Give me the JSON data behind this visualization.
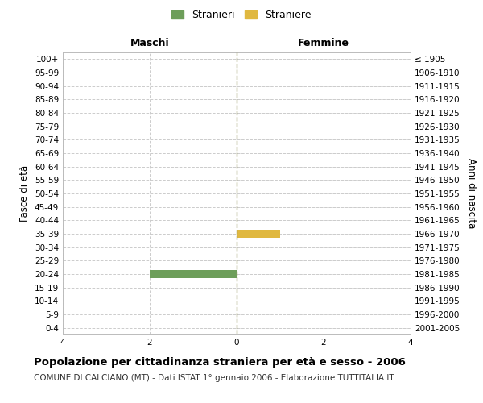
{
  "age_groups": [
    "100+",
    "95-99",
    "90-94",
    "85-89",
    "80-84",
    "75-79",
    "70-74",
    "65-69",
    "60-64",
    "55-59",
    "50-54",
    "45-49",
    "40-44",
    "35-39",
    "30-34",
    "25-29",
    "20-24",
    "15-19",
    "10-14",
    "5-9",
    "0-4"
  ],
  "birth_years": [
    "≤ 1905",
    "1906-1910",
    "1911-1915",
    "1916-1920",
    "1921-1925",
    "1926-1930",
    "1931-1935",
    "1936-1940",
    "1941-1945",
    "1946-1950",
    "1951-1955",
    "1956-1960",
    "1961-1965",
    "1966-1970",
    "1971-1975",
    "1976-1980",
    "1981-1985",
    "1986-1990",
    "1991-1995",
    "1996-2000",
    "2001-2005"
  ],
  "maschi_values": [
    0,
    0,
    0,
    0,
    0,
    0,
    0,
    0,
    0,
    0,
    0,
    0,
    0,
    0,
    0,
    0,
    2,
    0,
    0,
    0,
    0
  ],
  "femmine_values": [
    0,
    0,
    0,
    0,
    0,
    0,
    0,
    0,
    0,
    0,
    0,
    0,
    0,
    1,
    0,
    0,
    0,
    0,
    0,
    0,
    0
  ],
  "male_color": "#6d9e5a",
  "female_color": "#e0b840",
  "xlim": 4,
  "xlabel_left": "Maschi",
  "xlabel_right": "Femmine",
  "ylabel_left": "Fasce di età",
  "ylabel_right": "Anni di nascita",
  "legend_male": "Stranieri",
  "legend_female": "Straniere",
  "title": "Popolazione per cittadinanza straniera per età e sesso - 2006",
  "subtitle": "COMUNE DI CALCIANO (MT) - Dati ISTAT 1° gennaio 2006 - Elaborazione TUTTITALIA.IT",
  "grid_color": "#cccccc",
  "background_color": "#ffffff",
  "center_line_color": "#999966"
}
